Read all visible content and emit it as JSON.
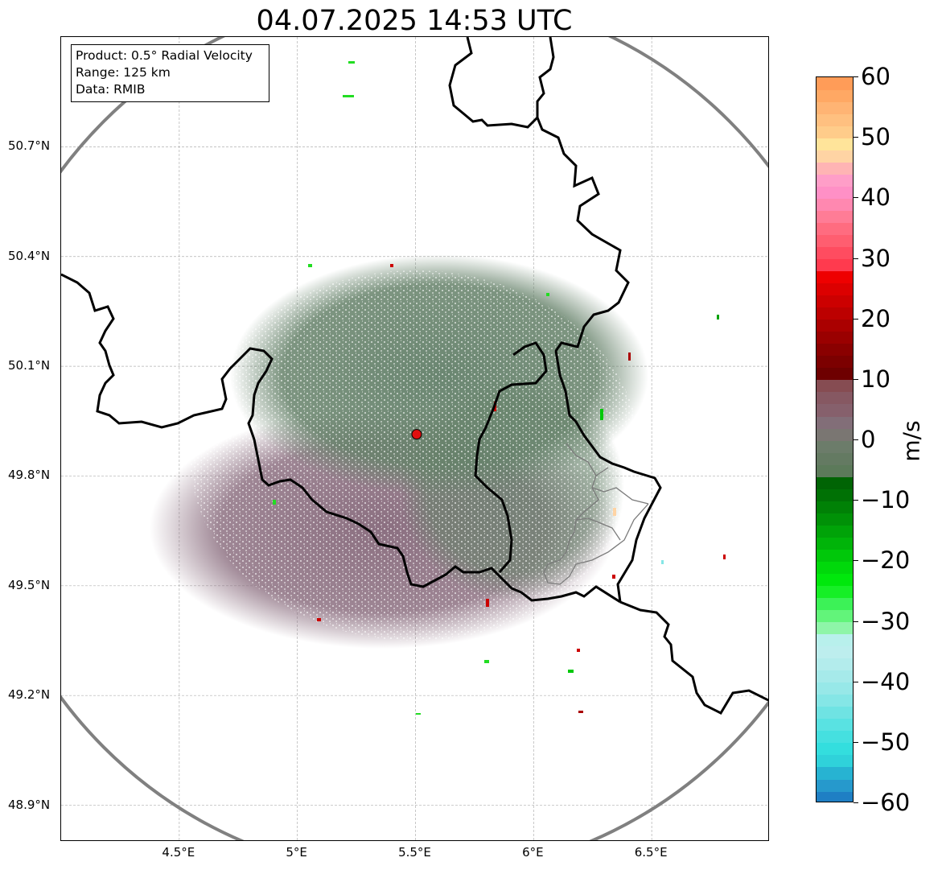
{
  "title": "04.07.2025 14:53 UTC",
  "info_box": {
    "product": "Product: 0.5° Radial Velocity",
    "range": "Range: 125 km",
    "data": "Data: RMIB"
  },
  "map": {
    "lon_range": [
      4.0,
      7.0
    ],
    "lat_range": [
      48.8,
      51.0
    ],
    "lat_ticks": [
      {
        "value": 50.7,
        "label": "50.7°N"
      },
      {
        "value": 50.4,
        "label": "50.4°N"
      },
      {
        "value": 50.1,
        "label": "50.1°N"
      },
      {
        "value": 49.8,
        "label": "49.8°N"
      },
      {
        "value": 49.5,
        "label": "49.5°N"
      },
      {
        "value": 49.2,
        "label": "49.2°N"
      },
      {
        "value": 48.9,
        "label": "48.9°N"
      }
    ],
    "lon_ticks": [
      {
        "value": 4.5,
        "label": "4.5°E"
      },
      {
        "value": 5.0,
        "label": "5°E"
      },
      {
        "value": 5.5,
        "label": "5.5°E"
      },
      {
        "value": 6.0,
        "label": "6°E"
      },
      {
        "value": 6.5,
        "label": "6.5°E"
      }
    ],
    "radar_site": {
      "lon": 5.505,
      "lat": 49.914
    },
    "range_km": 125,
    "colors": {
      "range_ring": "#808080",
      "border": "#000000",
      "grid": "#b0b0b0",
      "site_marker": "#e01010"
    }
  },
  "colorbar": {
    "unit": "m/s",
    "vmin": -60,
    "vmax": 60,
    "ticks": [
      {
        "value": 60,
        "label": "60"
      },
      {
        "value": 50,
        "label": "50"
      },
      {
        "value": 40,
        "label": "40"
      },
      {
        "value": 30,
        "label": "30"
      },
      {
        "value": 20,
        "label": "20"
      },
      {
        "value": 10,
        "label": "10"
      },
      {
        "value": 0,
        "label": "0"
      },
      {
        "value": -10,
        "label": "−10"
      },
      {
        "value": -20,
        "label": "−20"
      },
      {
        "value": -30,
        "label": "−30"
      },
      {
        "value": -40,
        "label": "−40"
      },
      {
        "value": -50,
        "label": "−50"
      },
      {
        "value": -60,
        "label": "−60"
      }
    ],
    "segments": [
      {
        "from": -60,
        "to": -58,
        "color": "#1f7fc4"
      },
      {
        "from": -58,
        "to": -56,
        "color": "#2699cc"
      },
      {
        "from": -56,
        "to": -54,
        "color": "#27b3d2"
      },
      {
        "from": -54,
        "to": -52,
        "color": "#2fd2da"
      },
      {
        "from": -52,
        "to": -50,
        "color": "#33dede"
      },
      {
        "from": -50,
        "to": -48,
        "color": "#45e0e0"
      },
      {
        "from": -48,
        "to": -46,
        "color": "#59e2e2"
      },
      {
        "from": -46,
        "to": -44,
        "color": "#6fe3e3"
      },
      {
        "from": -44,
        "to": -42,
        "color": "#85e6e6"
      },
      {
        "from": -42,
        "to": -40,
        "color": "#97e8e8"
      },
      {
        "from": -40,
        "to": -38,
        "color": "#a6eaea"
      },
      {
        "from": -38,
        "to": -36,
        "color": "#b3ecec"
      },
      {
        "from": -36,
        "to": -34,
        "color": "#bdeeee"
      },
      {
        "from": -34,
        "to": -32,
        "color": "#b8f0ec"
      },
      {
        "from": -32,
        "to": -30,
        "color": "#8ef5a8"
      },
      {
        "from": -30,
        "to": -28,
        "color": "#62f47a"
      },
      {
        "from": -28,
        "to": -26,
        "color": "#3cf257"
      },
      {
        "from": -26,
        "to": -24,
        "color": "#16ef26"
      },
      {
        "from": -24,
        "to": -22,
        "color": "#00e80c"
      },
      {
        "from": -22,
        "to": -20,
        "color": "#00d90b"
      },
      {
        "from": -20,
        "to": -18,
        "color": "#00c80a"
      },
      {
        "from": -18,
        "to": -16,
        "color": "#00b409"
      },
      {
        "from": -16,
        "to": -14,
        "color": "#00a308"
      },
      {
        "from": -14,
        "to": -12,
        "color": "#009107"
      },
      {
        "from": -12,
        "to": -10,
        "color": "#008106"
      },
      {
        "from": -10,
        "to": -8,
        "color": "#007105"
      },
      {
        "from": -8,
        "to": -6,
        "color": "#006404"
      },
      {
        "from": -6,
        "to": -4,
        "color": "#5c7a5a"
      },
      {
        "from": -4,
        "to": -2,
        "color": "#647a62"
      },
      {
        "from": -2,
        "to": 0,
        "color": "#6c7c6a"
      },
      {
        "from": 0,
        "to": 2,
        "color": "#7a7672"
      },
      {
        "from": 2,
        "to": 4,
        "color": "#826e78"
      },
      {
        "from": 4,
        "to": 6,
        "color": "#86606c"
      },
      {
        "from": 6,
        "to": 8,
        "color": "#865862"
      },
      {
        "from": 8,
        "to": 10,
        "color": "#864c52"
      },
      {
        "from": 10,
        "to": 12,
        "color": "#6e0000"
      },
      {
        "from": 12,
        "to": 14,
        "color": "#7c0000"
      },
      {
        "from": 14,
        "to": 16,
        "color": "#8a0000"
      },
      {
        "from": 16,
        "to": 18,
        "color": "#9a0000"
      },
      {
        "from": 18,
        "to": 20,
        "color": "#aa0000"
      },
      {
        "from": 20,
        "to": 22,
        "color": "#bc0000"
      },
      {
        "from": 22,
        "to": 24,
        "color": "#cc0000"
      },
      {
        "from": 24,
        "to": 26,
        "color": "#dc0000"
      },
      {
        "from": 26,
        "to": 28,
        "color": "#ee0000"
      },
      {
        "from": 28,
        "to": 30,
        "color": "#ff3a4e"
      },
      {
        "from": 30,
        "to": 32,
        "color": "#ff4c60"
      },
      {
        "from": 32,
        "to": 34,
        "color": "#ff5e70"
      },
      {
        "from": 34,
        "to": 36,
        "color": "#ff6c80"
      },
      {
        "from": 36,
        "to": 38,
        "color": "#ff7c96"
      },
      {
        "from": 38,
        "to": 40,
        "color": "#ff88b0"
      },
      {
        "from": 40,
        "to": 42,
        "color": "#ff90c6"
      },
      {
        "from": 42,
        "to": 44,
        "color": "#ff9ec8"
      },
      {
        "from": 44,
        "to": 46,
        "color": "#ffb4b4"
      },
      {
        "from": 46,
        "to": 48,
        "color": "#ffd4a4"
      },
      {
        "from": 48,
        "to": 50,
        "color": "#ffe49a"
      },
      {
        "from": 50,
        "to": 52,
        "color": "#ffcc8a"
      },
      {
        "from": 52,
        "to": 54,
        "color": "#ffc080"
      },
      {
        "from": 54,
        "to": 56,
        "color": "#ffb474"
      },
      {
        "from": 56,
        "to": 58,
        "color": "#ffa864"
      },
      {
        "from": 58,
        "to": 60,
        "color": "#ff9c58"
      }
    ]
  }
}
